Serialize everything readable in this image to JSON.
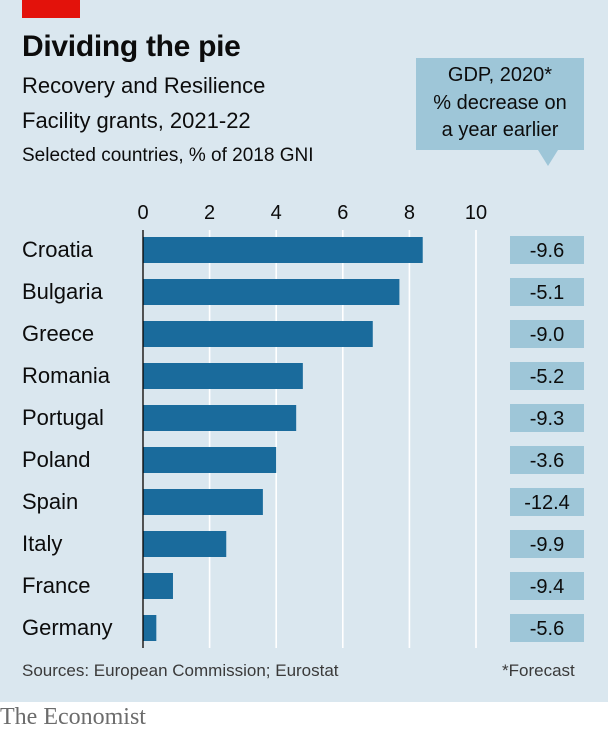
{
  "title": "Dividing the pie",
  "subtitle_line1": "Recovery and Resilience",
  "subtitle_line2": "Facility grants, 2021-22",
  "subtitle_line3": "Selected countries, % of 2018 GNI",
  "gdp_box": {
    "line1": "GDP, 2020*",
    "line2": "% decrease on",
    "line3": "a year earlier"
  },
  "sources": "Sources: European Commission; Eurostat",
  "footnote": "*Forecast",
  "brand": "The Economist",
  "colors": {
    "bar": "#1a6b9c",
    "panel": "#dae7ef",
    "gdp_fill": "#9ec6d8",
    "brand_red": "#e3120b"
  },
  "chart_data": {
    "type": "bar",
    "orientation": "horizontal",
    "categories": [
      "Croatia",
      "Bulgaria",
      "Greece",
      "Romania",
      "Portugal",
      "Poland",
      "Spain",
      "Italy",
      "France",
      "Germany"
    ],
    "values": [
      8.4,
      7.7,
      6.9,
      4.8,
      4.6,
      4.0,
      3.6,
      2.5,
      0.9,
      0.4
    ],
    "xlim": [
      0,
      10
    ],
    "xticks": [
      "0",
      "2",
      "4",
      "6",
      "8",
      "10"
    ],
    "grid": true,
    "gdp_change_labels": [
      "-9.6",
      "-5.1",
      "-9.0",
      "-5.2",
      "-9.3",
      "-3.6",
      "-12.4",
      "-9.9",
      "-9.4",
      "-5.6"
    ]
  }
}
